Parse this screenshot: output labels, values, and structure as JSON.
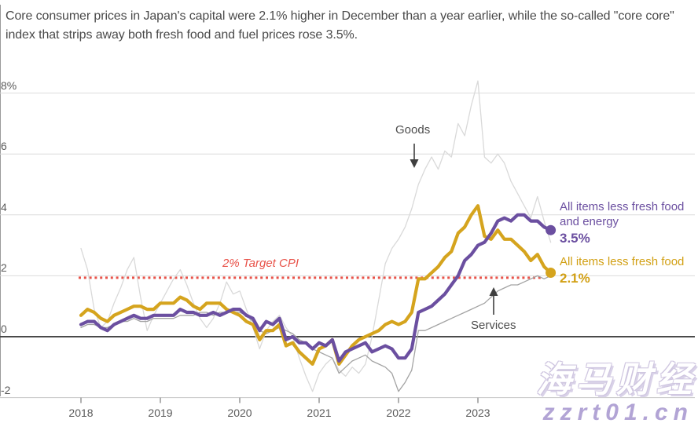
{
  "title": "Core consumer prices in Japan's capital were 2.1% higher in December than a year earlier, while the so-called \"core core\" index that strips away both fresh food and fuel prices rose 3.5%.",
  "annotations": {
    "goods_label": "Goods",
    "services_label": "Services",
    "target_label": "2% Target CPI"
  },
  "legend": {
    "core_core": {
      "label": "All items less fresh food and energy",
      "value": "3.5%"
    },
    "core": {
      "label": "All items less fresh food",
      "value": "2.1%"
    }
  },
  "watermark": {
    "line1": "海马财经",
    "line2": "zzrt01.cn"
  },
  "colors": {
    "purple": "#6b4fa0",
    "gold": "#d5a41e",
    "gold_text": "#d2a014",
    "goods_gray": "#d9d9d9",
    "services_gray": "#a3a3a3",
    "target_red": "#e8534a",
    "zero_line": "#4a4a4a",
    "grid": "#dcdcdc",
    "axis_text": "#5a5a5a",
    "arrow": "#3f3f3f"
  },
  "chart_data": {
    "type": "line",
    "title": "Tokyo consumer price inflation, year-on-year %",
    "frequency": "monthly",
    "x_start": "2018-01",
    "x_end": "2023-12",
    "x_tick_labels": [
      "2018",
      "2019",
      "2020",
      "2021",
      "2022",
      "2023"
    ],
    "x_tick_months": [
      0,
      12,
      24,
      36,
      48,
      60
    ],
    "y_ticks": [
      8,
      6,
      4,
      2,
      0,
      -2
    ],
    "y_tick_labels": [
      "8%",
      "6",
      "4",
      "2",
      "0",
      "-2"
    ],
    "ylim": [
      -2.6,
      8.6
    ],
    "grid": true,
    "legend_position": "right",
    "target_line": {
      "value": 2,
      "label": "2% Target CPI",
      "style": "dotted",
      "color": "#e8534a"
    },
    "series": [
      {
        "name": "Goods",
        "color": "#d9d9d9",
        "width": 1.3,
        "end_dot": false,
        "values": [
          2.9,
          2.2,
          0.9,
          0.3,
          0.5,
          1.1,
          1.6,
          2.2,
          2.6,
          1.3,
          0.2,
          0.7,
          1.1,
          1.5,
          1.9,
          2.2,
          1.7,
          1.1,
          0.6,
          0.3,
          0.6,
          1.1,
          1.8,
          1.4,
          1.5,
          0.9,
          0.3,
          -0.4,
          0.2,
          0.5,
          0.7,
          0.3,
          0.0,
          -0.7,
          -1.3,
          -1.8,
          -1.2,
          -0.9,
          -0.7,
          -1.1,
          -1.3,
          -1.0,
          -1.2,
          -0.9,
          0.0,
          1.2,
          2.4,
          2.9,
          3.2,
          3.6,
          4.2,
          5.0,
          5.5,
          5.9,
          5.5,
          6.1,
          5.9,
          7.0,
          6.6,
          7.6,
          8.4,
          5.9,
          5.7,
          6.0,
          5.7,
          5.1,
          4.7,
          4.3,
          3.9,
          4.6,
          3.8,
          3.1
        ]
      },
      {
        "name": "Services",
        "color": "#a3a3a3",
        "width": 1.3,
        "end_dot": false,
        "values": [
          0.3,
          0.4,
          0.4,
          0.3,
          0.3,
          0.4,
          0.5,
          0.5,
          0.6,
          0.5,
          0.5,
          0.6,
          0.6,
          0.6,
          0.6,
          0.7,
          0.7,
          0.7,
          0.8,
          0.8,
          0.7,
          0.8,
          0.8,
          0.8,
          0.8,
          0.7,
          0.5,
          0.2,
          0.1,
          0.2,
          0.3,
          0.2,
          0.1,
          -0.1,
          -0.2,
          -0.4,
          -0.5,
          -0.6,
          -0.7,
          -1.2,
          -1.0,
          -0.8,
          -0.7,
          -0.6,
          -0.8,
          -0.9,
          -1.0,
          -1.2,
          -1.8,
          -1.5,
          -1.1,
          0.2,
          0.2,
          0.3,
          0.4,
          0.5,
          0.6,
          0.7,
          0.8,
          0.9,
          1.0,
          1.1,
          1.3,
          1.5,
          1.6,
          1.7,
          1.7,
          1.8,
          1.9,
          2.0,
          1.9,
          2.0
        ]
      },
      {
        "name": "All items less fresh food",
        "color": "#d5a41e",
        "width": 4.2,
        "end_dot": true,
        "values": [
          0.7,
          0.9,
          0.8,
          0.6,
          0.5,
          0.7,
          0.8,
          0.9,
          1.0,
          1.0,
          0.9,
          0.9,
          1.1,
          1.1,
          1.1,
          1.3,
          1.2,
          1.0,
          0.9,
          1.1,
          1.1,
          1.1,
          0.9,
          0.8,
          0.7,
          0.5,
          0.4,
          -0.1,
          0.2,
          0.2,
          0.4,
          -0.3,
          -0.2,
          -0.5,
          -0.7,
          -0.9,
          -0.4,
          -0.3,
          -0.1,
          -0.9,
          -0.6,
          -0.3,
          -0.1,
          0.0,
          0.1,
          0.2,
          0.4,
          0.5,
          0.4,
          0.5,
          0.8,
          1.9,
          1.9,
          2.1,
          2.3,
          2.6,
          2.8,
          3.4,
          3.6,
          4.0,
          4.3,
          3.3,
          3.2,
          3.5,
          3.2,
          3.2,
          3.0,
          2.8,
          2.5,
          2.7,
          2.3,
          2.1
        ]
      },
      {
        "name": "All items less fresh food and energy",
        "color": "#6b4fa0",
        "width": 4.2,
        "end_dot": true,
        "values": [
          0.4,
          0.5,
          0.5,
          0.3,
          0.2,
          0.4,
          0.5,
          0.6,
          0.7,
          0.6,
          0.6,
          0.7,
          0.7,
          0.7,
          0.7,
          0.9,
          0.8,
          0.8,
          0.7,
          0.7,
          0.8,
          0.7,
          0.8,
          0.9,
          0.9,
          0.7,
          0.6,
          0.2,
          0.5,
          0.4,
          0.6,
          -0.1,
          0.0,
          -0.2,
          -0.2,
          -0.4,
          -0.2,
          -0.3,
          -0.1,
          -0.8,
          -0.5,
          -0.4,
          -0.3,
          -0.2,
          -0.5,
          -0.4,
          -0.3,
          -0.4,
          -0.7,
          -0.7,
          -0.4,
          0.8,
          0.9,
          1.0,
          1.2,
          1.4,
          1.7,
          2.0,
          2.5,
          2.7,
          3.0,
          3.1,
          3.4,
          3.8,
          3.9,
          3.8,
          4.0,
          4.0,
          3.8,
          3.8,
          3.6,
          3.5
        ]
      }
    ]
  }
}
